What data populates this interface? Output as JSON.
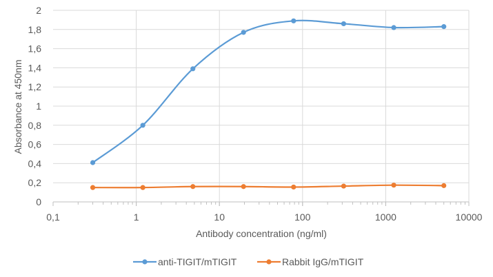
{
  "chart_data": {
    "type": "line",
    "xlabel": "Antibody concentration (ng/ml)",
    "ylabel": "Absorbance at 450nm",
    "x_scale": "log",
    "xlim": [
      0.1,
      10000
    ],
    "ylim": [
      0,
      2
    ],
    "x_ticks": [
      0.1,
      1,
      10,
      100,
      1000,
      10000
    ],
    "x_tick_labels": [
      "0,1",
      "1",
      "10",
      "100",
      "1000",
      "10000"
    ],
    "y_ticks": [
      0,
      0.2,
      0.4,
      0.6,
      0.8,
      1,
      1.2,
      1.4,
      1.6,
      1.8,
      2
    ],
    "y_tick_labels": [
      "0",
      "0,2",
      "0,4",
      "0,6",
      "0,8",
      "1",
      "1,2",
      "1,4",
      "1,6",
      "1,8",
      "2"
    ],
    "grid": "vertical major gridlines and horizontal gridlines",
    "legend_position": "bottom",
    "x": [
      0.3,
      1.2,
      4.8,
      19.5,
      78,
      312,
      1250,
      5000
    ],
    "series": [
      {
        "name": "anti-TIGIT/mTIGIT",
        "color": "#5b9bd5",
        "values": [
          0.41,
          0.8,
          1.39,
          1.77,
          1.89,
          1.86,
          1.82,
          1.83
        ]
      },
      {
        "name": "Rabbit IgG/mTIGIT",
        "color": "#ed7d31",
        "values": [
          0.15,
          0.15,
          0.16,
          0.16,
          0.155,
          0.165,
          0.175,
          0.17
        ]
      }
    ]
  }
}
